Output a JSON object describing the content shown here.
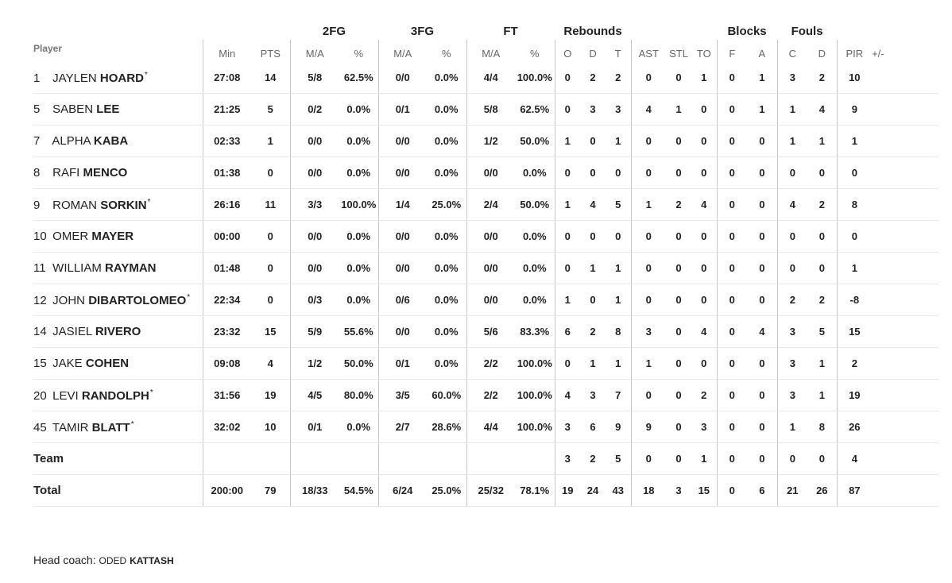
{
  "groups": {
    "fg2": "2FG",
    "fg3": "3FG",
    "ft": "FT",
    "rebounds": "Rebounds",
    "blocks": "Blocks",
    "fouls": "Fouls"
  },
  "columns": {
    "player": "Player",
    "min": "Min",
    "pts": "PTS",
    "ma": "M/A",
    "pct": "%",
    "o": "O",
    "d": "D",
    "t": "T",
    "ast": "AST",
    "stl": "STL",
    "to": "TO",
    "f": "F",
    "a": "A",
    "c": "C",
    "fd": "D",
    "pir": "PIR",
    "pm": "+/-"
  },
  "players": [
    {
      "num": "1",
      "first": "JAYLEN",
      "last": "HOARD",
      "star": true,
      "min": "27:08",
      "pts": "14",
      "fg2": "5/8",
      "fg2p": "62.5%",
      "fg3": "0/0",
      "fg3p": "0.0%",
      "ft": "4/4",
      "ftp": "100.0%",
      "o": "0",
      "d": "2",
      "t": "2",
      "ast": "0",
      "stl": "0",
      "to": "1",
      "bf": "0",
      "ba": "1",
      "fc": "3",
      "fd": "2",
      "pir": "10",
      "pm": ""
    },
    {
      "num": "5",
      "first": "SABEN",
      "last": "LEE",
      "star": false,
      "min": "21:25",
      "pts": "5",
      "fg2": "0/2",
      "fg2p": "0.0%",
      "fg3": "0/1",
      "fg3p": "0.0%",
      "ft": "5/8",
      "ftp": "62.5%",
      "o": "0",
      "d": "3",
      "t": "3",
      "ast": "4",
      "stl": "1",
      "to": "0",
      "bf": "0",
      "ba": "1",
      "fc": "1",
      "fd": "4",
      "pir": "9",
      "pm": ""
    },
    {
      "num": "7",
      "first": "ALPHA",
      "last": "KABA",
      "star": false,
      "min": "02:33",
      "pts": "1",
      "fg2": "0/0",
      "fg2p": "0.0%",
      "fg3": "0/0",
      "fg3p": "0.0%",
      "ft": "1/2",
      "ftp": "50.0%",
      "o": "1",
      "d": "0",
      "t": "1",
      "ast": "0",
      "stl": "0",
      "to": "0",
      "bf": "0",
      "ba": "0",
      "fc": "1",
      "fd": "1",
      "pir": "1",
      "pm": ""
    },
    {
      "num": "8",
      "first": "RAFI",
      "last": "MENCO",
      "star": false,
      "min": "01:38",
      "pts": "0",
      "fg2": "0/0",
      "fg2p": "0.0%",
      "fg3": "0/0",
      "fg3p": "0.0%",
      "ft": "0/0",
      "ftp": "0.0%",
      "o": "0",
      "d": "0",
      "t": "0",
      "ast": "0",
      "stl": "0",
      "to": "0",
      "bf": "0",
      "ba": "0",
      "fc": "0",
      "fd": "0",
      "pir": "0",
      "pm": ""
    },
    {
      "num": "9",
      "first": "ROMAN",
      "last": "SORKIN",
      "star": true,
      "min": "26:16",
      "pts": "11",
      "fg2": "3/3",
      "fg2p": "100.0%",
      "fg3": "1/4",
      "fg3p": "25.0%",
      "ft": "2/4",
      "ftp": "50.0%",
      "o": "1",
      "d": "4",
      "t": "5",
      "ast": "1",
      "stl": "2",
      "to": "4",
      "bf": "0",
      "ba": "0",
      "fc": "4",
      "fd": "2",
      "pir": "8",
      "pm": ""
    },
    {
      "num": "10",
      "first": "OMER",
      "last": "MAYER",
      "star": false,
      "min": "00:00",
      "pts": "0",
      "fg2": "0/0",
      "fg2p": "0.0%",
      "fg3": "0/0",
      "fg3p": "0.0%",
      "ft": "0/0",
      "ftp": "0.0%",
      "o": "0",
      "d": "0",
      "t": "0",
      "ast": "0",
      "stl": "0",
      "to": "0",
      "bf": "0",
      "ba": "0",
      "fc": "0",
      "fd": "0",
      "pir": "0",
      "pm": ""
    },
    {
      "num": "11",
      "first": "WILLIAM",
      "last": "RAYMAN",
      "star": false,
      "min": "01:48",
      "pts": "0",
      "fg2": "0/0",
      "fg2p": "0.0%",
      "fg3": "0/0",
      "fg3p": "0.0%",
      "ft": "0/0",
      "ftp": "0.0%",
      "o": "0",
      "d": "1",
      "t": "1",
      "ast": "0",
      "stl": "0",
      "to": "0",
      "bf": "0",
      "ba": "0",
      "fc": "0",
      "fd": "0",
      "pir": "1",
      "pm": ""
    },
    {
      "num": "12",
      "first": "JOHN",
      "last": "DIBARTOLOMEO",
      "star": true,
      "min": "22:34",
      "pts": "0",
      "fg2": "0/3",
      "fg2p": "0.0%",
      "fg3": "0/6",
      "fg3p": "0.0%",
      "ft": "0/0",
      "ftp": "0.0%",
      "o": "1",
      "d": "0",
      "t": "1",
      "ast": "0",
      "stl": "0",
      "to": "0",
      "bf": "0",
      "ba": "0",
      "fc": "2",
      "fd": "2",
      "pir": "-8",
      "pm": ""
    },
    {
      "num": "14",
      "first": "JASIEL",
      "last": "RIVERO",
      "star": false,
      "min": "23:32",
      "pts": "15",
      "fg2": "5/9",
      "fg2p": "55.6%",
      "fg3": "0/0",
      "fg3p": "0.0%",
      "ft": "5/6",
      "ftp": "83.3%",
      "o": "6",
      "d": "2",
      "t": "8",
      "ast": "3",
      "stl": "0",
      "to": "4",
      "bf": "0",
      "ba": "4",
      "fc": "3",
      "fd": "5",
      "pir": "15",
      "pm": ""
    },
    {
      "num": "15",
      "first": "JAKE",
      "last": "COHEN",
      "star": false,
      "min": "09:08",
      "pts": "4",
      "fg2": "1/2",
      "fg2p": "50.0%",
      "fg3": "0/1",
      "fg3p": "0.0%",
      "ft": "2/2",
      "ftp": "100.0%",
      "o": "0",
      "d": "1",
      "t": "1",
      "ast": "1",
      "stl": "0",
      "to": "0",
      "bf": "0",
      "ba": "0",
      "fc": "3",
      "fd": "1",
      "pir": "2",
      "pm": ""
    },
    {
      "num": "20",
      "first": "LEVI",
      "last": "RANDOLPH",
      "star": true,
      "min": "31:56",
      "pts": "19",
      "fg2": "4/5",
      "fg2p": "80.0%",
      "fg3": "3/5",
      "fg3p": "60.0%",
      "ft": "2/2",
      "ftp": "100.0%",
      "o": "4",
      "d": "3",
      "t": "7",
      "ast": "0",
      "stl": "0",
      "to": "2",
      "bf": "0",
      "ba": "0",
      "fc": "3",
      "fd": "1",
      "pir": "19",
      "pm": ""
    },
    {
      "num": "45",
      "first": "TAMIR",
      "last": "BLATT",
      "star": true,
      "min": "32:02",
      "pts": "10",
      "fg2": "0/1",
      "fg2p": "0.0%",
      "fg3": "2/7",
      "fg3p": "28.6%",
      "ft": "4/4",
      "ftp": "100.0%",
      "o": "3",
      "d": "6",
      "t": "9",
      "ast": "9",
      "stl": "0",
      "to": "3",
      "bf": "0",
      "ba": "0",
      "fc": "1",
      "fd": "8",
      "pir": "26",
      "pm": ""
    }
  ],
  "team": {
    "label": "Team",
    "o": "3",
    "d": "2",
    "t": "5",
    "ast": "0",
    "stl": "0",
    "to": "1",
    "bf": "0",
    "ba": "0",
    "fc": "0",
    "fd": "0",
    "pir": "4"
  },
  "total": {
    "label": "Total",
    "min": "200:00",
    "pts": "79",
    "fg2": "18/33",
    "fg2p": "54.5%",
    "fg3": "6/24",
    "fg3p": "25.0%",
    "ft": "25/32",
    "ftp": "78.1%",
    "o": "19",
    "d": "24",
    "t": "43",
    "ast": "18",
    "stl": "3",
    "to": "15",
    "bf": "0",
    "ba": "6",
    "fc": "21",
    "fd": "26",
    "pir": "87"
  },
  "coach": {
    "label": "Head coach:",
    "first": "ODED",
    "last": "KATTASH"
  }
}
